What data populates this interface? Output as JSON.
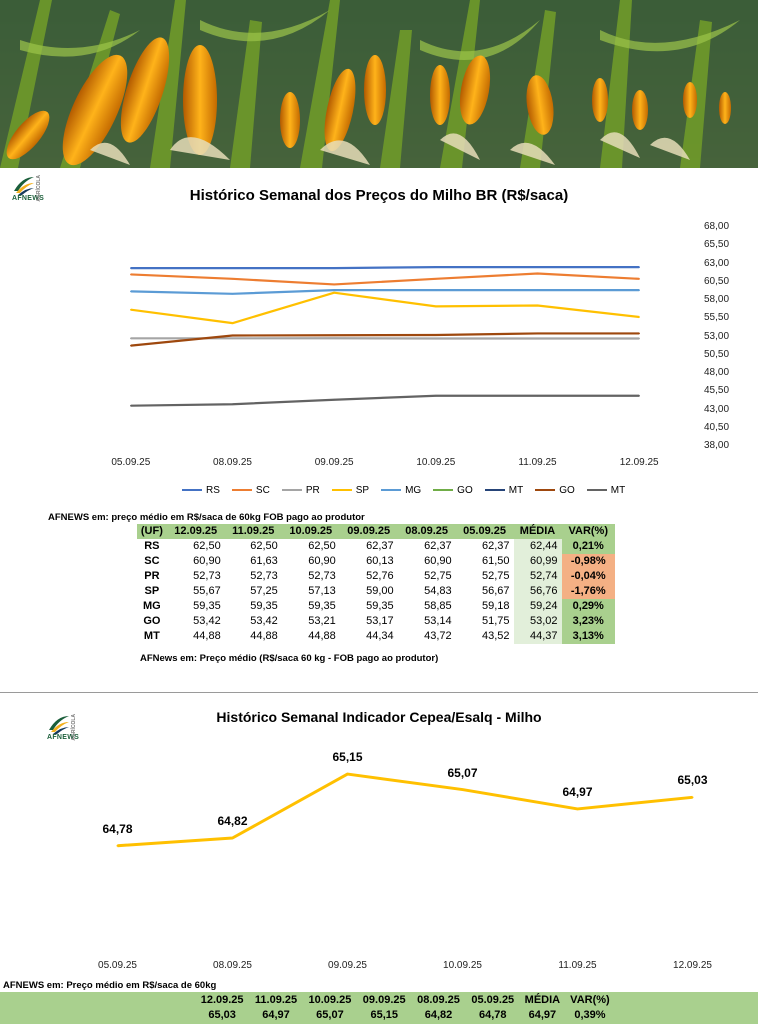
{
  "colors": {
    "rs": "#4472c4",
    "sc": "#ed7d31",
    "pr": "#a5a5a5",
    "sp": "#ffc000",
    "mg": "#5b9bd5",
    "go": "#70ad47",
    "mt": "#264478",
    "go2": "#9e480e",
    "mt2": "#636363",
    "header_green": "#a9d08e",
    "media_bg": "#e2efda",
    "neg_bg": "#f4b084",
    "pos_bg": "#a9d08e",
    "indicator": "#ffc000"
  },
  "logo_text": "AFNEWS",
  "logo_side": "AGRÍCOLA",
  "chart_data": [
    {
      "type": "line",
      "title": "Histórico Semanal dos Preços do Milho BR (R$/saca)",
      "x": [
        "05.09.25",
        "08.09.25",
        "09.09.25",
        "10.09.25",
        "11.09.25",
        "12.09.25"
      ],
      "yticks": [
        "68,00",
        "65,50",
        "63,00",
        "60,50",
        "58,00",
        "55,50",
        "53,00",
        "50,50",
        "48,00",
        "45,50",
        "43,00",
        "40,50",
        "38,00"
      ],
      "ylim": [
        38,
        68
      ],
      "legend_position": "bottom",
      "legend": [
        "RS",
        "SC",
        "PR",
        "SP",
        "MG",
        "GO",
        "MT",
        "GO",
        "MT"
      ],
      "series": [
        {
          "name": "RS",
          "color_key": "rs",
          "values": [
            62.37,
            62.37,
            62.37,
            62.5,
            62.5,
            62.5
          ]
        },
        {
          "name": "SC",
          "color_key": "sc",
          "values": [
            61.5,
            60.9,
            60.13,
            60.9,
            61.63,
            60.9
          ]
        },
        {
          "name": "PR",
          "color_key": "pr",
          "values": [
            52.75,
            52.75,
            52.76,
            52.73,
            52.73,
            52.73
          ]
        },
        {
          "name": "SP",
          "color_key": "sp",
          "values": [
            56.67,
            54.83,
            59.0,
            57.13,
            57.25,
            55.67
          ]
        },
        {
          "name": "MG",
          "color_key": "mg",
          "values": [
            59.18,
            58.85,
            59.35,
            59.35,
            59.35,
            59.35
          ]
        },
        {
          "name": "GO",
          "color_key": "go2",
          "values": [
            51.75,
            53.14,
            53.17,
            53.21,
            53.42,
            53.42
          ]
        },
        {
          "name": "MT",
          "color_key": "mt2",
          "values": [
            43.52,
            43.72,
            44.34,
            44.88,
            44.88,
            44.88
          ]
        }
      ]
    },
    {
      "type": "line",
      "title": "Histórico Semanal Indicador Cepea/Esalq - Milho",
      "x": [
        "05.09.25",
        "08.09.25",
        "09.09.25",
        "10.09.25",
        "11.09.25",
        "12.09.25"
      ],
      "values": [
        64.78,
        64.82,
        65.15,
        65.07,
        64.97,
        65.03
      ],
      "labels": [
        "64,78",
        "64,82",
        "65,15",
        "65,07",
        "64,97",
        "65,03"
      ],
      "ylim": [
        64.5,
        65.3
      ]
    }
  ],
  "table1": {
    "note_top": "AFNEWS em: preço médio em R$/saca de 60kg FOB pago ao produtor",
    "note_bottom": "AFNews em: Preço médio (R$/saca 60 kg - FOB pago ao produtor)",
    "headers": [
      "(UF)",
      "12.09.25",
      "11.09.25",
      "10.09.25",
      "09.09.25",
      "08.09.25",
      "05.09.25",
      "MÉDIA",
      "VAR(%)"
    ],
    "rows": [
      {
        "uf": "RS",
        "vals": [
          "62,50",
          "62,50",
          "62,50",
          "62,37",
          "62,37",
          "62,37"
        ],
        "media": "62,44",
        "var": "0,21%",
        "neg": false
      },
      {
        "uf": "SC",
        "vals": [
          "60,90",
          "61,63",
          "60,90",
          "60,13",
          "60,90",
          "61,50"
        ],
        "media": "60,99",
        "var": "-0,98%",
        "neg": true
      },
      {
        "uf": "PR",
        "vals": [
          "52,73",
          "52,73",
          "52,73",
          "52,76",
          "52,75",
          "52,75"
        ],
        "media": "52,74",
        "var": "-0,04%",
        "neg": true
      },
      {
        "uf": "SP",
        "vals": [
          "55,67",
          "57,25",
          "57,13",
          "59,00",
          "54,83",
          "56,67"
        ],
        "media": "56,76",
        "var": "-1,76%",
        "neg": true
      },
      {
        "uf": "MG",
        "vals": [
          "59,35",
          "59,35",
          "59,35",
          "59,35",
          "58,85",
          "59,18"
        ],
        "media": "59,24",
        "var": "0,29%",
        "neg": false
      },
      {
        "uf": "GO",
        "vals": [
          "53,42",
          "53,42",
          "53,21",
          "53,17",
          "53,14",
          "51,75"
        ],
        "media": "53,02",
        "var": "3,23%",
        "neg": false
      },
      {
        "uf": "MT",
        "vals": [
          "44,88",
          "44,88",
          "44,88",
          "44,34",
          "43,72",
          "43,52"
        ],
        "media": "44,37",
        "var": "3,13%",
        "neg": false
      }
    ]
  },
  "table2": {
    "note": "AFNEWS em: Preço médio em R$/saca de 60kg",
    "headers": [
      "12.09.25",
      "11.09.25",
      "10.09.25",
      "09.09.25",
      "08.09.25",
      "05.09.25",
      "MÉDIA",
      "VAR(%)"
    ],
    "values": [
      "65,03",
      "64,97",
      "65,07",
      "65,15",
      "64,82",
      "64,78",
      "64,97",
      "0,39%"
    ]
  }
}
